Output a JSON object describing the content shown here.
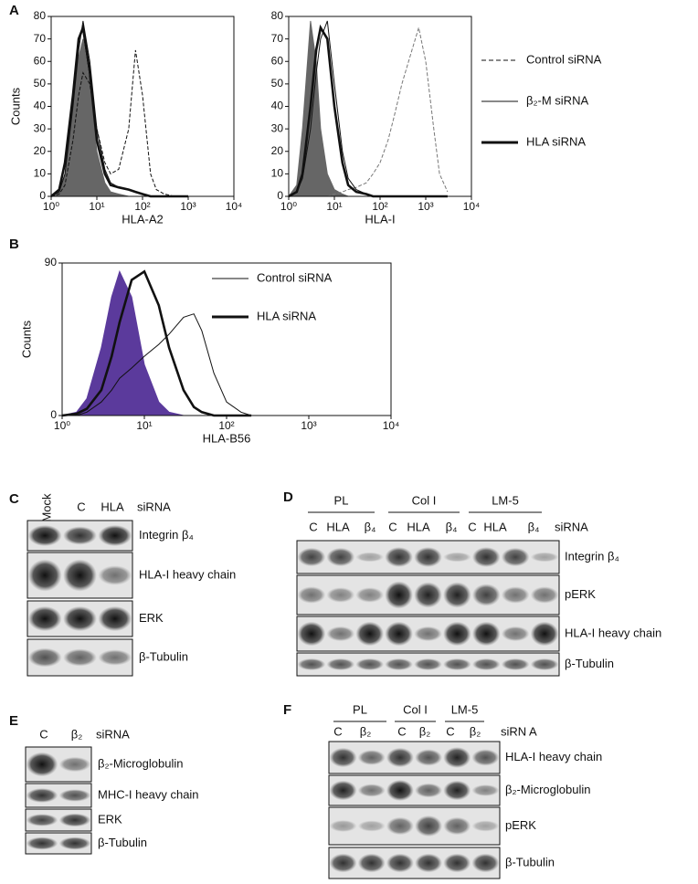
{
  "chart_data": [
    {
      "type": "line",
      "panel": "A",
      "xlabel": "HLA-A2",
      "ylabel": "Counts",
      "xscale": "log",
      "xlim": [
        1,
        10000
      ],
      "xticks": [
        {
          "value": 1,
          "label": "10⁰"
        },
        {
          "value": 10,
          "label": "10¹"
        },
        {
          "value": 100,
          "label": "10²"
        },
        {
          "value": 1000,
          "label": "10³"
        },
        {
          "value": 10000,
          "label": "10⁴"
        }
      ],
      "ylim": [
        0,
        80
      ],
      "yticks": [
        0,
        10,
        20,
        30,
        40,
        50,
        60,
        70,
        80
      ],
      "x": [
        1,
        1.5,
        2,
        3,
        4,
        5,
        7,
        10,
        15,
        20,
        30,
        50,
        70,
        100,
        150,
        200,
        300,
        500,
        1000
      ],
      "series": [
        {
          "color": "#666666",
          "fill": true,
          "values": [
            0,
            2,
            10,
            40,
            62,
            70,
            50,
            20,
            6,
            2,
            1,
            0,
            0,
            0,
            0,
            0,
            0,
            0,
            0
          ]
        },
        {
          "color": "#111111",
          "style": "dashed",
          "values": [
            0,
            1,
            5,
            25,
            45,
            55,
            50,
            30,
            15,
            10,
            12,
            30,
            65,
            45,
            10,
            3,
            1,
            0,
            0
          ]
        },
        {
          "color": "#111111",
          "style": "thin",
          "values": [
            0,
            2,
            10,
            40,
            65,
            78,
            60,
            30,
            12,
            6,
            4,
            3,
            2,
            1,
            0,
            0,
            0,
            0,
            0
          ]
        },
        {
          "color": "#111111",
          "style": "thick",
          "values": [
            0,
            3,
            15,
            45,
            70,
            75,
            55,
            25,
            10,
            5,
            4,
            3,
            2,
            1,
            0,
            0,
            0,
            0,
            0
          ]
        }
      ]
    },
    {
      "type": "line",
      "xlabel": "HLA-I",
      "xscale": "log",
      "xlim": [
        1,
        10000
      ],
      "xticks": [
        {
          "value": 1,
          "label": "10⁰"
        },
        {
          "value": 10,
          "label": "10¹"
        },
        {
          "value": 100,
          "label": "10²"
        },
        {
          "value": 1000,
          "label": "10³"
        },
        {
          "value": 10000,
          "label": "10⁴"
        }
      ],
      "ylim": [
        0,
        80
      ],
      "yticks": [
        0,
        10,
        20,
        30,
        40,
        50,
        60,
        70,
        80
      ],
      "x": [
        1,
        1.5,
        2,
        3,
        4,
        5,
        7,
        10,
        15,
        20,
        30,
        50,
        70,
        100,
        150,
        200,
        300,
        500,
        700,
        1000,
        1500,
        2000,
        3000
      ],
      "series": [
        {
          "color": "#666666",
          "fill": true,
          "values": [
            0,
            5,
            30,
            78,
            60,
            30,
            10,
            3,
            1,
            0,
            0,
            0,
            0,
            0,
            0,
            0,
            0,
            0,
            0,
            0,
            0,
            0,
            0
          ]
        },
        {
          "name": "Control siRNA",
          "color": "#777777",
          "style": "dashed",
          "values": [
            0,
            0,
            0,
            0,
            0,
            0,
            0,
            1,
            2,
            3,
            4,
            6,
            10,
            15,
            25,
            35,
            50,
            65,
            75,
            60,
            30,
            10,
            2
          ]
        },
        {
          "name": "β₂-M siRNA",
          "color": "#111111",
          "style": "thin",
          "values": [
            0,
            2,
            8,
            30,
            55,
            70,
            78,
            50,
            20,
            8,
            3,
            1,
            0,
            0,
            0,
            0,
            0,
            0,
            0,
            0,
            0,
            0,
            0
          ]
        },
        {
          "name": "HLA siRNA",
          "color": "#111111",
          "style": "thick",
          "values": [
            0,
            2,
            10,
            40,
            65,
            75,
            70,
            40,
            15,
            5,
            2,
            1,
            0,
            0,
            0,
            0,
            0,
            0,
            0,
            0,
            0,
            0,
            0
          ]
        }
      ]
    },
    {
      "type": "line",
      "panel": "B",
      "xlabel": "HLA-B56",
      "ylabel": "Counts",
      "xscale": "log",
      "xlim": [
        1,
        10000
      ],
      "xticks": [
        {
          "value": 1,
          "label": "10⁰"
        },
        {
          "value": 10,
          "label": "10¹"
        },
        {
          "value": 100,
          "label": "10²"
        },
        {
          "value": 1000,
          "label": "10³"
        },
        {
          "value": 10000,
          "label": "10⁴"
        }
      ],
      "ylim": [
        0,
        90
      ],
      "yticks": [
        0,
        90
      ],
      "x": [
        1,
        1.5,
        2,
        3,
        4,
        5,
        7,
        10,
        15,
        20,
        30,
        40,
        50,
        70,
        100,
        150,
        200
      ],
      "series": [
        {
          "color": "#5b3a9c",
          "fill": true,
          "values": [
            0,
            2,
            10,
            40,
            70,
            85,
            70,
            30,
            8,
            2,
            0,
            0,
            0,
            0,
            0,
            0,
            0
          ]
        },
        {
          "name": "Control siRNA",
          "color": "#111111",
          "style": "thin",
          "values": [
            0,
            0,
            2,
            8,
            15,
            22,
            28,
            35,
            42,
            48,
            58,
            60,
            50,
            25,
            8,
            2,
            0
          ]
        },
        {
          "name": "HLA siRNA",
          "color": "#111111",
          "style": "thick",
          "values": [
            0,
            1,
            4,
            15,
            35,
            55,
            80,
            85,
            65,
            40,
            15,
            5,
            2,
            0,
            0,
            0,
            0
          ]
        }
      ]
    }
  ],
  "blots": [
    {
      "panel": "C",
      "lanes": [
        "Mock",
        "C",
        "HLA"
      ],
      "lane_suffix": "siRNA",
      "rows": [
        "Integrin β₄",
        "HLA-I heavy chain",
        "ERK",
        "β-Tubulin"
      ]
    },
    {
      "panel": "D",
      "groups": [
        "PL",
        "Col I",
        "LM-5"
      ],
      "lanes": [
        "C",
        "HLA",
        "β₄",
        "C",
        "HLA",
        "β₄",
        "C",
        "HLA",
        "β₄"
      ],
      "lane_suffix": "siRNA",
      "rows": [
        "Integrin β₄",
        "pERK",
        "HLA-I heavy chain",
        "β-Tubulin"
      ]
    },
    {
      "panel": "E",
      "lanes": [
        "C",
        "β₂"
      ],
      "lane_suffix": "siRNA",
      "rows": [
        "β₂-Microglobulin",
        "MHC-I heavy chain",
        "ERK",
        "β-Tubulin"
      ]
    },
    {
      "panel": "F",
      "groups": [
        "PL",
        "Col I",
        "LM-5"
      ],
      "lanes": [
        "C",
        "β₂",
        "C",
        "β₂",
        "C",
        "β₂"
      ],
      "lane_suffix": "siRN A",
      "rows": [
        "HLA-I heavy chain",
        "β₂-Microglobulin",
        "pERK",
        "β-Tubulin"
      ]
    }
  ]
}
